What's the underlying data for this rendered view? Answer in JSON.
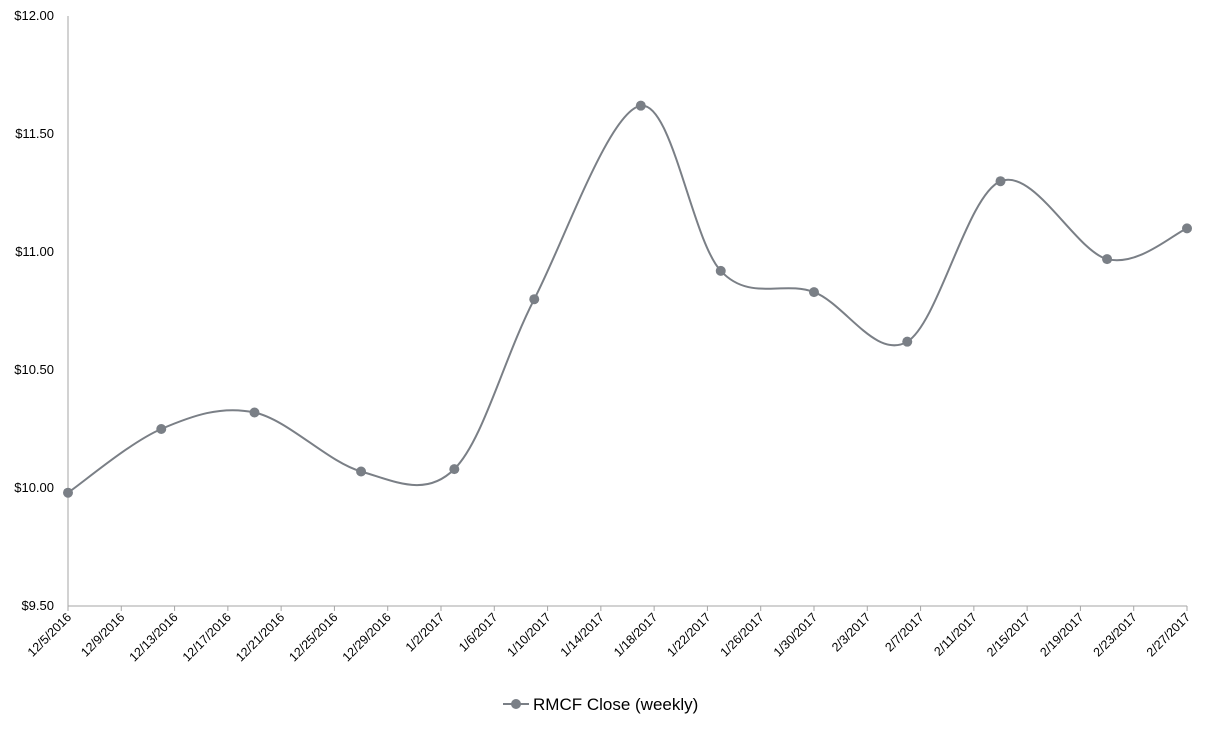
{
  "chart_data": {
    "type": "line",
    "smooth": true,
    "x_ticks": [
      "12/5/2016",
      "12/9/2016",
      "12/13/2016",
      "12/17/2016",
      "12/21/2016",
      "12/25/2016",
      "12/29/2016",
      "1/2/2017",
      "1/6/2017",
      "1/10/2017",
      "1/14/2017",
      "1/18/2017",
      "1/22/2017",
      "1/26/2017",
      "1/30/2017",
      "2/3/2017",
      "2/7/2017",
      "2/11/2017",
      "2/15/2017",
      "2/19/2017",
      "2/23/2017",
      "2/27/2017"
    ],
    "y_ticks": [
      "$9.50",
      "$10.00",
      "$10.50",
      "$11.00",
      "$11.50",
      "$12.00"
    ],
    "ylim": [
      9.5,
      12.0
    ],
    "xlim": [
      "12/5/2016",
      "2/27/2017"
    ],
    "grid": false,
    "legend_position": "bottom",
    "series": [
      {
        "name": "RMCF Close (weekly)",
        "color": "#7a7f86",
        "points": [
          {
            "x": "12/5/2016",
            "y": 9.98
          },
          {
            "x": "12/12/2016",
            "y": 10.25
          },
          {
            "x": "12/19/2016",
            "y": 10.32
          },
          {
            "x": "12/27/2016",
            "y": 10.07
          },
          {
            "x": "1/3/2017",
            "y": 10.08
          },
          {
            "x": "1/9/2017",
            "y": 10.8
          },
          {
            "x": "1/17/2017",
            "y": 11.62
          },
          {
            "x": "1/23/2017",
            "y": 10.92
          },
          {
            "x": "1/30/2017",
            "y": 10.83
          },
          {
            "x": "2/6/2017",
            "y": 10.62
          },
          {
            "x": "2/13/2017",
            "y": 11.3
          },
          {
            "x": "2/21/2017",
            "y": 10.97
          },
          {
            "x": "2/27/2017",
            "y": 11.1
          }
        ]
      }
    ]
  }
}
